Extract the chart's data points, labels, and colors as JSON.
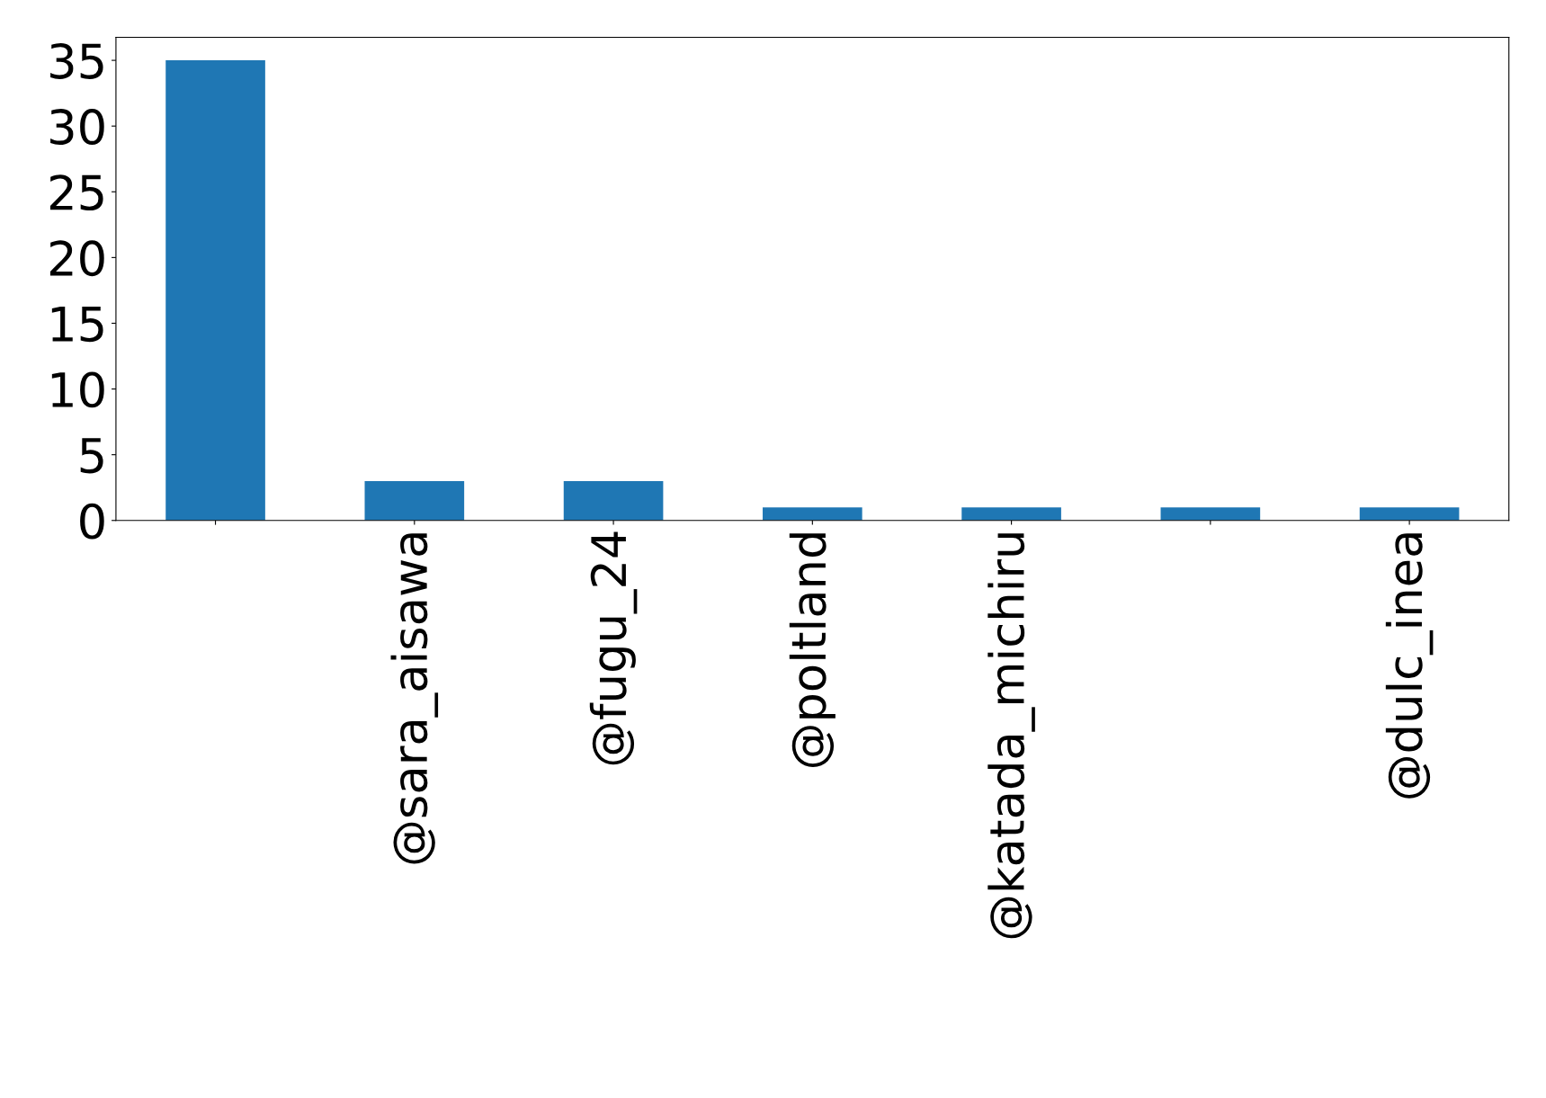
{
  "chart_data": {
    "type": "bar",
    "categories": [
      null,
      "@sara_aisawa",
      "@fugu_24",
      "@poltland",
      "@katada_michiru",
      null,
      "@dulc_inea"
    ],
    "values": [
      35,
      3,
      3,
      1,
      1,
      1,
      1
    ],
    "color": "#1f77b4",
    "ylim": [
      0,
      36.75
    ],
    "yticks": [
      0,
      5,
      10,
      15,
      20,
      25,
      30,
      35
    ],
    "grid": false,
    "legend": false
  }
}
